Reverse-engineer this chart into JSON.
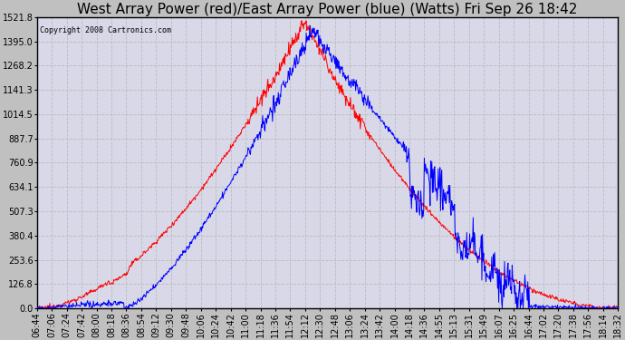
{
  "title": "West Array Power (red)/East Array Power (blue) (Watts) Fri Sep 26 18:42",
  "copyright": "Copyright 2008 Cartronics.com",
  "bg_color": "#c0c0c0",
  "plot_bg_color": "#d8d8e8",
  "ymin": 0.0,
  "ymax": 1521.8,
  "yticks": [
    0.0,
    126.8,
    253.6,
    380.4,
    507.3,
    634.1,
    760.9,
    887.7,
    1014.5,
    1141.3,
    1268.2,
    1395.0,
    1521.8
  ],
  "xtick_labels": [
    "06:44",
    "07:06",
    "07:24",
    "07:42",
    "08:00",
    "08:18",
    "08:36",
    "08:54",
    "09:12",
    "09:30",
    "09:48",
    "10:06",
    "10:24",
    "10:42",
    "11:00",
    "11:18",
    "11:36",
    "11:54",
    "12:12",
    "12:30",
    "12:48",
    "13:06",
    "13:24",
    "13:42",
    "14:00",
    "14:18",
    "14:36",
    "14:55",
    "15:13",
    "15:31",
    "15:49",
    "16:07",
    "16:25",
    "16:44",
    "17:02",
    "17:20",
    "17:38",
    "17:56",
    "18:14",
    "18:32"
  ],
  "red_color": "#ff0000",
  "blue_color": "#0000ff",
  "grid_color": "#aaaaaa",
  "title_fontsize": 11,
  "tick_fontsize": 7
}
